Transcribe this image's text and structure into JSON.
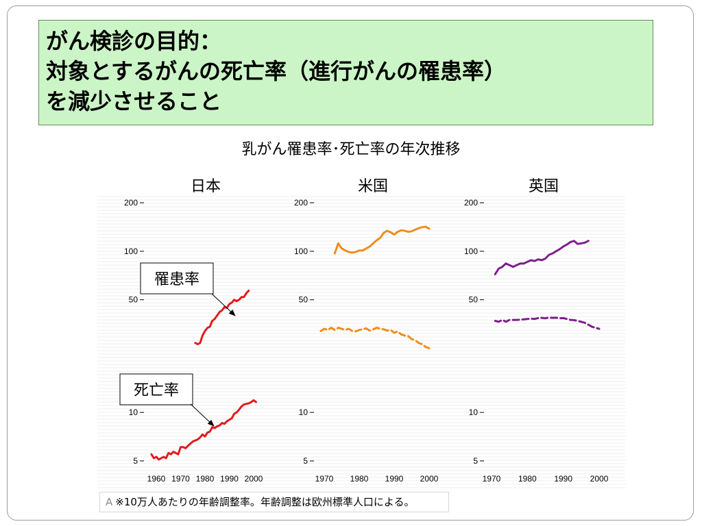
{
  "title": {
    "line1": "がん検診の目的：",
    "line2": "対象とするがんの死亡率（進行がんの罹患率）",
    "line3": "を減少させること"
  },
  "colors": {
    "title_bg": "#ccf5c7",
    "japan": "#e31a1c",
    "usa": "#f08c1c",
    "uk": "#7d1e8c"
  },
  "footnote": {
    "prefix": "A",
    "text": "※10万人あたりの年齢調整率。年齢調整は欧州標準人口による。"
  },
  "chart_data": {
    "type": "line",
    "title": "乳がん罹患率･死亡率の年次推移",
    "y_scale": "log",
    "ylim": [
      4.5,
      230
    ],
    "yticks": [
      5,
      10,
      50,
      100,
      200
    ],
    "grid": false,
    "annotations": [
      {
        "text": "罹患率",
        "target_panel": 0,
        "target_series": "incidence"
      },
      {
        "text": "死亡率",
        "target_panel": 0,
        "target_series": "mortality"
      }
    ],
    "panels": [
      {
        "name": "日本",
        "xlim": [
          1955,
          2003
        ],
        "xticks": [
          1960,
          1970,
          1980,
          1990,
          2000
        ],
        "color": "#e31a1c",
        "series": [
          {
            "name": "",
            "style": "solid",
            "x": [
              1976,
              1977,
              1978,
              1979,
              1980,
              1981,
              1982,
              1983,
              1984,
              1985,
              1986,
              1987,
              1988,
              1989,
              1990,
              1991,
              1992,
              1993,
              1994,
              1995,
              1996,
              1997,
              1998
            ],
            "y": [
              27,
              26.5,
              27,
              30,
              32,
              33.5,
              34,
              37,
              38,
              40,
              42,
              43,
              45,
              44.5,
              47,
              48,
              50,
              49,
              50,
              52,
              52,
              55,
              57
            ]
          },
          {
            "name": "",
            "style": "solid",
            "x": [
              1958,
              1959,
              1960,
              1961,
              1962,
              1963,
              1964,
              1965,
              1966,
              1967,
              1968,
              1969,
              1970,
              1971,
              1972,
              1973,
              1974,
              1975,
              1976,
              1977,
              1978,
              1979,
              1980,
              1981,
              1982,
              1983,
              1984,
              1985,
              1986,
              1987,
              1988,
              1989,
              1990,
              1991,
              1992,
              1993,
              1994,
              1995,
              1996,
              1997,
              1998,
              1999,
              2000,
              2001
            ],
            "y": [
              5.5,
              5.2,
              5.3,
              5.1,
              5.2,
              5.3,
              5.2,
              5.6,
              5.5,
              5.7,
              5.6,
              5.5,
              6.1,
              6.1,
              6.0,
              6.2,
              6.4,
              6.6,
              6.7,
              6.8,
              7.0,
              7.3,
              7.1,
              7.5,
              7.6,
              8.1,
              8.0,
              8.2,
              8.3,
              8.6,
              8.5,
              8.8,
              9.0,
              9.2,
              9.8,
              10.0,
              10.4,
              10.9,
              11.2,
              11.3,
              11.4,
              11.6,
              11.9,
              11.6
            ]
          }
        ]
      },
      {
        "name": "米国",
        "xlim": [
          1965,
          2003
        ],
        "xticks": [
          1970,
          1980,
          1990,
          2000
        ],
        "color": "#f08c1c",
        "series": [
          {
            "name": "",
            "style": "solid",
            "x": [
              1973,
              1974,
              1975,
              1976,
              1977,
              1978,
              1979,
              1980,
              1981,
              1982,
              1983,
              1984,
              1985,
              1986,
              1987,
              1988,
              1989,
              1990,
              1991,
              1992,
              1993,
              1994,
              1995,
              1996,
              1997,
              1998,
              1999,
              2000
            ],
            "y": [
              97,
              112,
              104,
              101,
              99,
              98,
              99,
              101,
              101,
              104,
              107,
              112,
              117,
              121,
              130,
              134,
              131,
              127,
              132,
              135,
              134,
              132,
              133,
              136,
              139,
              141,
              142,
              138
            ]
          },
          {
            "name": "",
            "style": "dashed",
            "x": [
              1969,
              1970,
              1971,
              1972,
              1973,
              1974,
              1975,
              1976,
              1977,
              1978,
              1979,
              1980,
              1981,
              1982,
              1983,
              1984,
              1985,
              1986,
              1987,
              1988,
              1989,
              1990,
              1991,
              1992,
              1993,
              1994,
              1995,
              1996,
              1997,
              1998,
              1999,
              2000
            ],
            "y": [
              32,
              33,
              32.5,
              33.5,
              32.5,
              33.5,
              33,
              32.5,
              33,
              32,
              31.8,
              32.5,
              32.8,
              33.2,
              32.2,
              32.8,
              33.5,
              33,
              32.8,
              32.2,
              32.5,
              31.2,
              31.8,
              30.5,
              30,
              29.8,
              28.5,
              28,
              27,
              26.5,
              25.5,
              25
            ]
          }
        ]
      },
      {
        "name": "英国",
        "xlim": [
          1965,
          2003
        ],
        "xticks": [
          1970,
          1980,
          1990,
          2000
        ],
        "color": "#7d1e8c",
        "series": [
          {
            "name": "",
            "style": "solid",
            "x": [
              1971,
              1972,
              1973,
              1974,
              1975,
              1976,
              1977,
              1978,
              1979,
              1980,
              1981,
              1982,
              1983,
              1984,
              1985,
              1986,
              1987,
              1988,
              1989,
              1990,
              1991,
              1992,
              1993,
              1994,
              1995,
              1996,
              1997
            ],
            "y": [
              72,
              78,
              80,
              84,
              82,
              80,
              82,
              84,
              84,
              86,
              88,
              87,
              89,
              88,
              90,
              95,
              97,
              100,
              103,
              107,
              110,
              114,
              116,
              111,
              112,
              113,
              116
            ]
          },
          {
            "name": "",
            "style": "dashed",
            "x": [
              1971,
              1972,
              1973,
              1974,
              1975,
              1976,
              1977,
              1978,
              1979,
              1980,
              1981,
              1982,
              1983,
              1984,
              1985,
              1986,
              1987,
              1988,
              1989,
              1990,
              1991,
              1992,
              1993,
              1994,
              1995,
              1996,
              1997,
              1998,
              1999,
              2000
            ],
            "y": [
              37,
              36.5,
              37.5,
              36.5,
              37.5,
              37.5,
              37.5,
              37.6,
              37.8,
              38,
              38.2,
              38,
              38.5,
              38.6,
              38.4,
              38.8,
              38.6,
              38.7,
              38.4,
              38.5,
              38,
              37.5,
              37.4,
              37,
              36.5,
              36,
              35,
              34,
              33.5,
              33
            ]
          }
        ]
      }
    ]
  }
}
